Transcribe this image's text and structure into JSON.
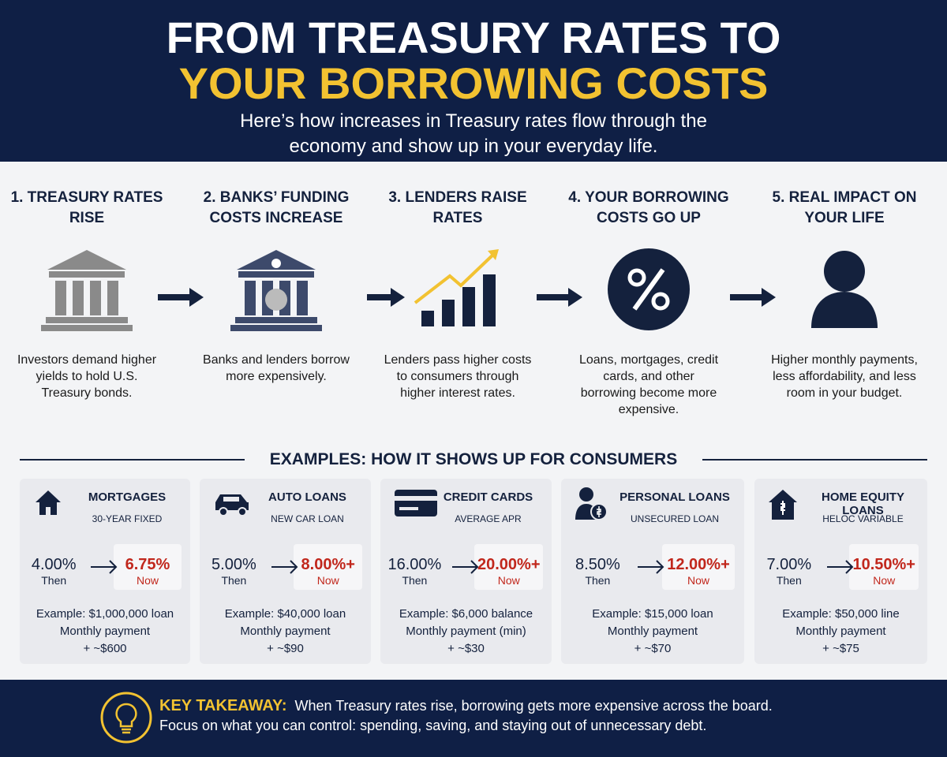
{
  "header": {
    "title_line1": "FROM TREASURY RATES TO",
    "title_line2": "YOUR BORROWING COSTS",
    "subtitle": "Here’s how increases in Treasury rates flow through the economy and show up in your everyday life."
  },
  "steps": [
    {
      "title": "1. TREASURY RATES RISE",
      "description": "Investors demand higher yields to hold U.S. Treasury bonds."
    },
    {
      "title": "2. BANKS’ FUNDING COSTS INCREASE",
      "description": "Banks and lenders borrow more expensively."
    },
    {
      "title": "3. LENDERS RAISE RATES",
      "description": "Lenders pass higher costs to consumers through higher interest rates."
    },
    {
      "title": "4. YOUR BORROWING COSTS GO UP",
      "description": "Loans, mortgages, credit cards, and other borrowing become more expensive."
    },
    {
      "title": "5. REAL IMPACT ON YOUR LIFE",
      "description": "Higher monthly payments, less affordability, and less room in your budget."
    }
  ],
  "examples_heading": "EXAMPLES: HOW IT SHOWS UP FOR CONSUMERS",
  "examples": [
    {
      "title": "MORTGAGES",
      "subtitle": "30-YEAR FIXED",
      "then": "4.00%",
      "then_label": "Then",
      "now": "6.75%",
      "now_label": "Now",
      "example": "Example: $1,000,000 loan",
      "payment": "Monthly payment",
      "change": "+ ~$600"
    },
    {
      "title": "AUTO LOANS",
      "subtitle": "NEW CAR LOAN",
      "then": "5.00%",
      "then_label": "Then",
      "now": "8.00%+",
      "now_label": "Now",
      "example": "Example: $40,000 loan",
      "payment": "Monthly payment",
      "change": "+ ~$90"
    },
    {
      "title": "CREDIT CARDS",
      "subtitle": "AVERAGE APR",
      "then": "16.00%",
      "then_label": "Then",
      "now": "20.00%+",
      "now_label": "Now",
      "example": "Example: $6,000 balance",
      "payment": "Monthly payment (min)",
      "change": "+ ~$30"
    },
    {
      "title": "PERSONAL LOANS",
      "subtitle": "UNSECURED LOAN",
      "then": "8.50%",
      "then_label": "Then",
      "now": "12.00%+",
      "now_label": "Now",
      "example": "Example: $15,000 loan",
      "payment": "Monthly payment",
      "change": "+ ~$70"
    },
    {
      "title": "HOME EQUITY LOANS",
      "subtitle": "HELOC VARIABLE",
      "then": "7.00%",
      "then_label": "Then",
      "now": "10.50%+",
      "now_label": "Now",
      "example": "Example: $50,000 line",
      "payment": "Monthly payment",
      "change": "+ ~$75"
    }
  ],
  "takeaway": {
    "label": "KEY TAKEAWAY:",
    "line1": "When Treasury rates rise, borrowing gets more expensive across the board.",
    "line2": "Focus on what you can control: spending, saving, and staying out of unnecessary debt."
  }
}
